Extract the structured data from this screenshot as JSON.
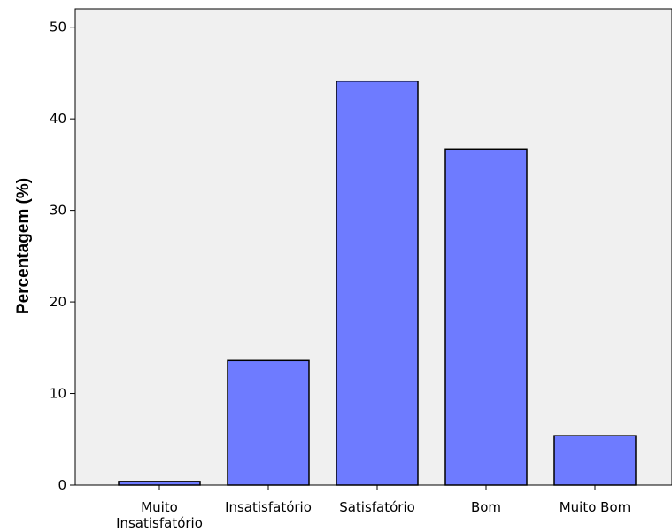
{
  "chart_data": {
    "type": "bar",
    "title": "",
    "xlabel": "",
    "ylabel": "Percentagem (%)",
    "categories": [
      [
        "Muito",
        "Insatisfatório"
      ],
      [
        "Insatisfatório"
      ],
      [
        "Satisfatório"
      ],
      [
        "Bom"
      ],
      [
        "Muito Bom"
      ]
    ],
    "values": [
      0.4,
      13.6,
      44.1,
      36.7,
      5.4
    ],
    "ylim": [
      0,
      52
    ],
    "yticks": [
      0,
      10,
      20,
      30,
      40,
      50
    ],
    "grid": false,
    "legend": "none",
    "colors": {
      "bar_fill": "#6e7bff",
      "bar_stroke": "#000000",
      "plot_background": "#f0f0f0",
      "plot_border": "#000000"
    }
  }
}
